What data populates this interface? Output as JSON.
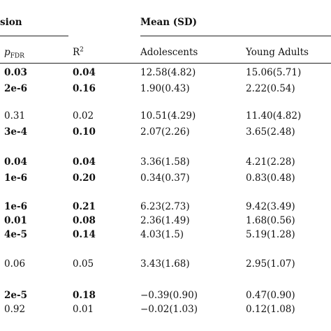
{
  "headers": {
    "group_left": "sion",
    "group_right": "Mean (SD)",
    "p_fdr_main": "p",
    "p_fdr_sub": "FDR",
    "r2_main": "R",
    "r2_sup": "2",
    "adolescents": "Adolescents",
    "young_adults": "Young Adults"
  },
  "rows": [
    {
      "p": "0.03",
      "p_bold": true,
      "r2": "0.04",
      "r2_bold": true,
      "adol": "12.58(4.82)",
      "young": "15.06(5.71)"
    },
    {
      "p": "2e-6",
      "p_bold": true,
      "r2": "0.16",
      "r2_bold": true,
      "adol": "1.90(0.43)",
      "young": "2.22(0.54)"
    },
    {
      "p": "0.31",
      "p_bold": false,
      "r2": "0.02",
      "r2_bold": false,
      "adol": "10.51(4.29)",
      "young": "11.40(4.82)"
    },
    {
      "p": "3e-4",
      "p_bold": true,
      "r2": "0.10",
      "r2_bold": true,
      "adol": "2.07(2.26)",
      "young": "3.65(2.48)"
    },
    {
      "p": "0.04",
      "p_bold": true,
      "r2": "0.04",
      "r2_bold": true,
      "adol": "3.36(1.58)",
      "young": "4.21(2.28)"
    },
    {
      "p": "1e-6",
      "p_bold": true,
      "r2": "0.20",
      "r2_bold": true,
      "adol": "0.34(0.37)",
      "young": "0.83(0.48)"
    },
    {
      "p": "1e-6",
      "p_bold": true,
      "r2": "0.21",
      "r2_bold": true,
      "adol": "6.23(2.73)",
      "young": "9.42(3.49)"
    },
    {
      "p": "0.01",
      "p_bold": true,
      "r2": "0.08",
      "r2_bold": true,
      "adol": "2.36(1.49)",
      "young": "1.68(0.56)"
    },
    {
      "p": "4e-5",
      "p_bold": true,
      "r2": "0.14",
      "r2_bold": true,
      "adol": "4.03(1.5)",
      "young": "5.19(1.28)"
    },
    {
      "p": "0.06",
      "p_bold": false,
      "r2": "0.05",
      "r2_bold": false,
      "adol": "3.43(1.68)",
      "young": "2.95(1.07)"
    },
    {
      "p": "2e-5",
      "p_bold": true,
      "r2": "0.18",
      "r2_bold": true,
      "adol": "−0.39(0.90)",
      "young": "0.47(0.90)"
    },
    {
      "p": "0.92",
      "p_bold": false,
      "r2": "0.01",
      "r2_bold": false,
      "adol": "−0.02(1.03)",
      "young": "0.12(1.08)"
    }
  ]
}
